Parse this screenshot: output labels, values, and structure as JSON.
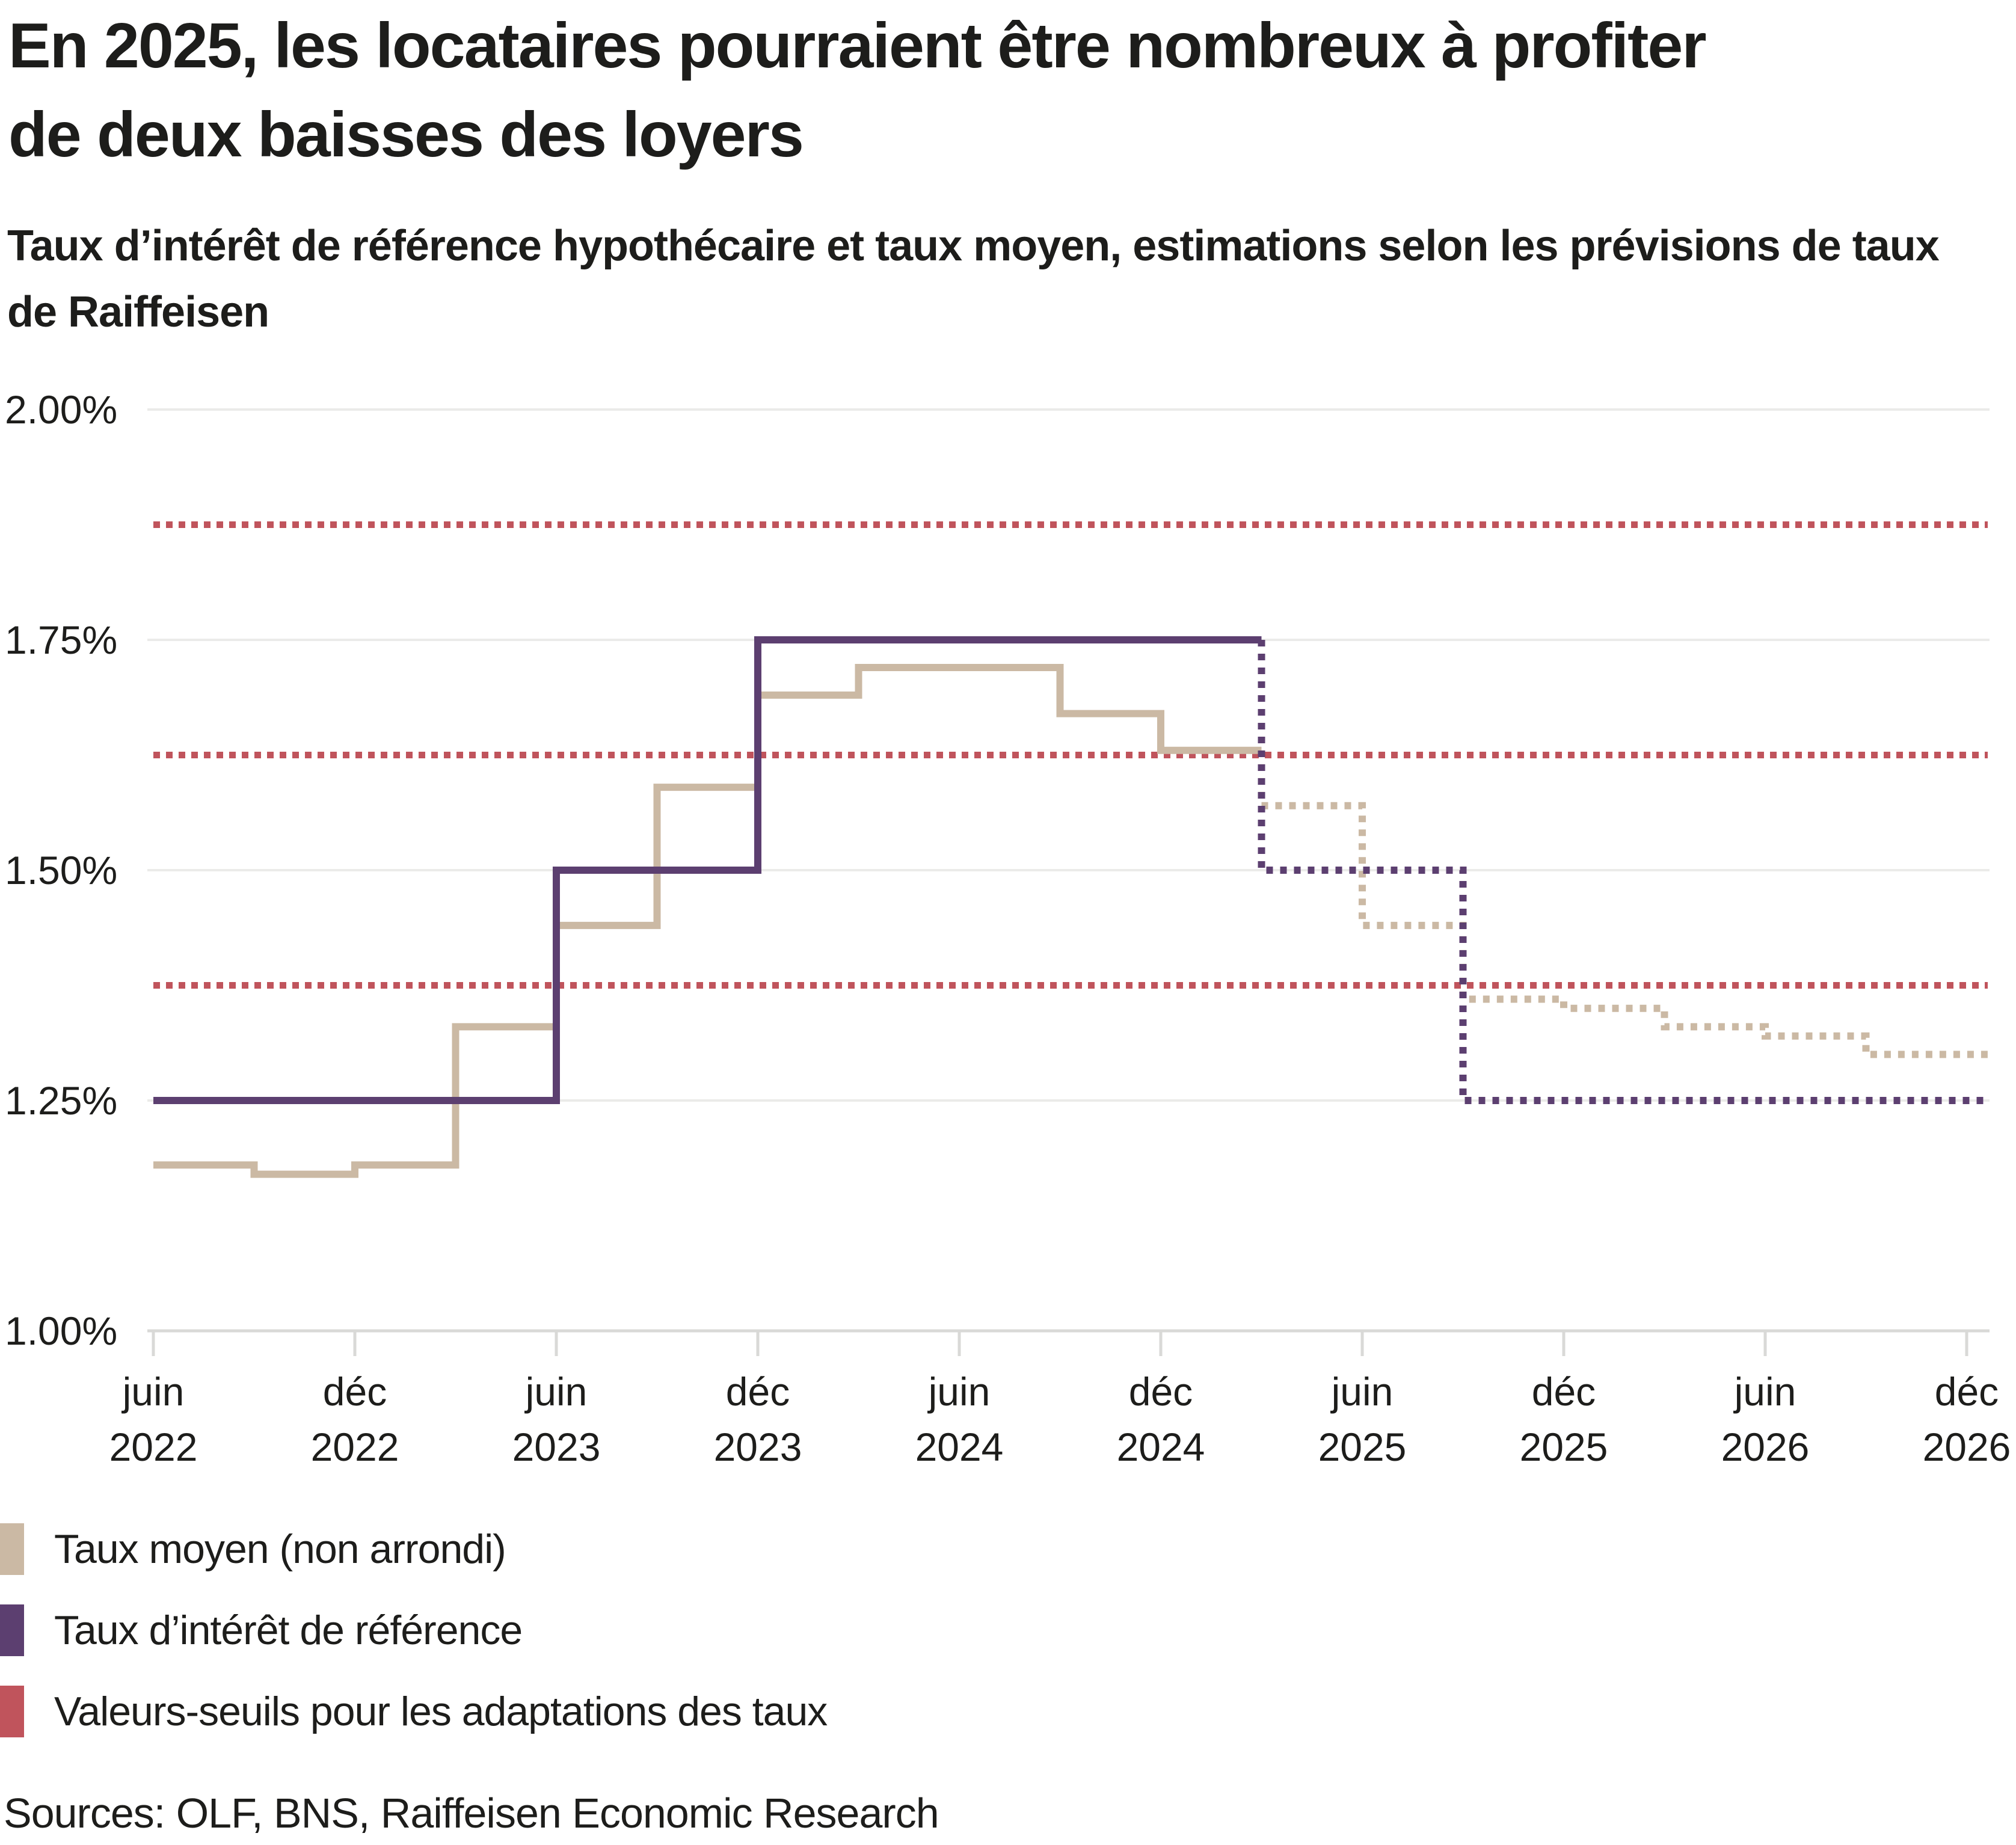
{
  "page": {
    "title_line1": "En 2025, les locataires pourraient être nombreux à profiter",
    "title_line2": "de deux baisses des loyers",
    "subtitle_line1": "Taux d’intérêt de référence hypothécaire et taux moyen, estimations selon les prévisions de taux",
    "subtitle_line2": "de Raiffeisen",
    "sources": "Sources: OLF, BNS, Raiffeisen Economic Research"
  },
  "chart_data": {
    "type": "line",
    "title": "En 2025, les locataires pourraient être nombreux à profiter de deux baisses des loyers",
    "subtitle": "Taux d’intérêt de référence hypothécaire et taux moyen, estimations selon les prévisions de taux de Raiffeisen",
    "sources": "Sources: OLF, BNS, Raiffeisen Economic Research",
    "ylim": [
      1.0,
      2.0
    ],
    "grid": true,
    "legend_position": "bottom-left",
    "yticks": [
      {
        "value": 2.0,
        "label": "2.00%"
      },
      {
        "value": 1.75,
        "label": "1.75%"
      },
      {
        "value": 1.5,
        "label": "1.50%"
      },
      {
        "value": 1.25,
        "label": "1.25%"
      },
      {
        "value": 1.0,
        "label": "1.00%"
      }
    ],
    "xticks": [
      {
        "month_offset": 0,
        "month": "juin",
        "year": "2022"
      },
      {
        "month_offset": 6,
        "month": "déc",
        "year": "2022"
      },
      {
        "month_offset": 12,
        "month": "juin",
        "year": "2023"
      },
      {
        "month_offset": 18,
        "month": "déc",
        "year": "2023"
      },
      {
        "month_offset": 24,
        "month": "juin",
        "year": "2024"
      },
      {
        "month_offset": 30,
        "month": "déc",
        "year": "2024"
      },
      {
        "month_offset": 36,
        "month": "juin",
        "year": "2025"
      },
      {
        "month_offset": 42,
        "month": "déc",
        "year": "2025"
      },
      {
        "month_offset": 48,
        "month": "juin",
        "year": "2026"
      },
      {
        "month_offset": 54,
        "month": "déc",
        "year": "2026"
      }
    ],
    "x_axis_note": "month_offset = months since juin 2022, quarterly step data, forecast (dotted) from mars 2025",
    "thresholds": {
      "name": "Valeurs-seuils pour les adaptations des taux",
      "color": "#c0545c",
      "values": [
        1.875,
        1.625,
        1.375
      ]
    },
    "forecast_from_month": 33,
    "series": [
      {
        "name": "Taux moyen (non arrondi)",
        "color": "#cbb9a4",
        "points": [
          [
            0,
            1.18
          ],
          [
            3,
            1.17
          ],
          [
            6,
            1.18
          ],
          [
            9,
            1.33
          ],
          [
            12,
            1.44
          ],
          [
            15,
            1.59
          ],
          [
            18,
            1.69
          ],
          [
            21,
            1.72
          ],
          [
            27,
            1.67
          ],
          [
            30,
            1.63
          ],
          [
            33,
            1.57
          ],
          [
            36,
            1.44
          ],
          [
            39,
            1.36
          ],
          [
            42,
            1.35
          ],
          [
            45,
            1.33
          ],
          [
            48,
            1.32
          ],
          [
            51,
            1.3
          ]
        ]
      },
      {
        "name": "Taux d’intérêt de référence",
        "color": "#5c3f70",
        "points": [
          [
            0,
            1.25
          ],
          [
            12,
            1.5
          ],
          [
            18,
            1.75
          ],
          [
            33,
            1.5
          ],
          [
            39,
            1.25
          ]
        ]
      }
    ],
    "legend": [
      {
        "label": "Taux moyen (non arrondi)",
        "color": "#cbb9a4"
      },
      {
        "label": "Taux d’intérêt de référence",
        "color": "#5c3f70"
      },
      {
        "label": "Valeurs-seuils pour les adaptations des taux",
        "color": "#c0545c"
      }
    ]
  }
}
